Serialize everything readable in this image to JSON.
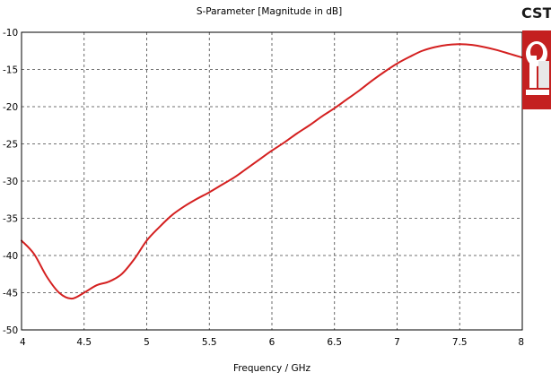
{
  "chart_data": {
    "type": "line",
    "title": "S-Parameter [Magnitude in dB]",
    "xlabel": "Frequency / GHz",
    "ylabel": "",
    "xlim": [
      4,
      8
    ],
    "ylim": [
      -50,
      -10
    ],
    "xticks": [
      "4",
      "4.5",
      "5",
      "5.5",
      "6",
      "6.5",
      "7",
      "7.5",
      "8"
    ],
    "yticks": [
      "-10",
      "-15",
      "-20",
      "-25",
      "-30",
      "-35",
      "-40",
      "-45",
      "-50"
    ],
    "grid": true,
    "series": [
      {
        "color": "#d42020",
        "x": [
          4.0,
          4.1,
          4.2,
          4.3,
          4.4,
          4.5,
          4.6,
          4.7,
          4.8,
          4.9,
          5.0,
          5.1,
          5.2,
          5.3,
          5.4,
          5.5,
          5.6,
          5.7,
          5.8,
          5.9,
          6.0,
          6.1,
          6.2,
          6.3,
          6.4,
          6.5,
          6.6,
          6.7,
          6.8,
          6.9,
          7.0,
          7.1,
          7.2,
          7.3,
          7.4,
          7.5,
          7.6,
          7.7,
          7.8,
          7.9,
          8.0
        ],
        "values": [
          -38.0,
          -39.8,
          -42.8,
          -45.0,
          -45.8,
          -45.0,
          -44.0,
          -43.5,
          -42.5,
          -40.5,
          -38.0,
          -36.2,
          -34.6,
          -33.4,
          -32.4,
          -31.5,
          -30.5,
          -29.5,
          -28.3,
          -27.1,
          -25.9,
          -24.8,
          -23.6,
          -22.5,
          -21.3,
          -20.2,
          -19.0,
          -17.8,
          -16.5,
          -15.3,
          -14.2,
          -13.3,
          -12.5,
          -12.0,
          -11.7,
          -11.6,
          -11.7,
          -12.0,
          -12.4,
          -12.9,
          -13.4
        ]
      }
    ]
  },
  "logo": {
    "text": "CST",
    "icon": "cst-logo-icon"
  }
}
